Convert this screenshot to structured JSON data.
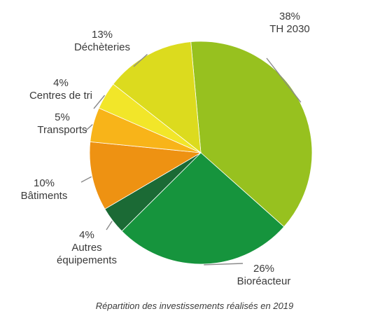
{
  "chart_data": {
    "type": "pie",
    "title": "",
    "caption": "Répartition des investissements réalisés en 2019",
    "slices": [
      {
        "label": "TH 2030",
        "value": 38,
        "value_label": "38%",
        "color": "#97c11f"
      },
      {
        "label": "Bioréacteur",
        "value": 26,
        "value_label": "26%",
        "color": "#16943d"
      },
      {
        "label": "Autres équipements",
        "label_lines": [
          "Autres",
          "équipements"
        ],
        "value": 4,
        "value_label": "4%",
        "color": "#1b6a35"
      },
      {
        "label": "Bâtiments",
        "value": 10,
        "value_label": "10%",
        "color": "#ee9212"
      },
      {
        "label": "Transports",
        "value": 5,
        "value_label": "5%",
        "color": "#f8b419"
      },
      {
        "label": "Centres de tri",
        "value": 4,
        "value_label": "4%",
        "color": "#f2e629"
      },
      {
        "label": "Déchèteries",
        "value": 13,
        "value_label": "13%",
        "color": "#dcdb1e"
      }
    ]
  }
}
